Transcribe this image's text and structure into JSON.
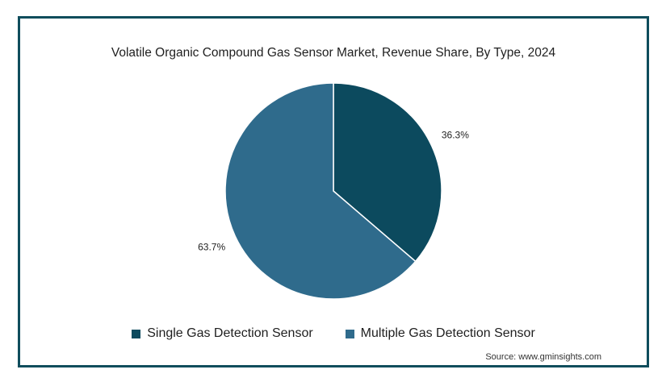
{
  "chart_data": {
    "type": "pie",
    "title": "Volatile Organic Compound Gas Sensor Market, Revenue Share, By Type, 2024",
    "slices": [
      {
        "label": "Single Gas Detection Sensor",
        "value": 36.3,
        "value_label": "36.3%",
        "color": "#0c4a5e"
      },
      {
        "label": "Multiple Gas Detection Sensor",
        "value": 63.7,
        "value_label": "63.7%",
        "color": "#2f6b8c"
      }
    ],
    "legend_position": "bottom"
  },
  "source": "Source: www.gminsights.com"
}
